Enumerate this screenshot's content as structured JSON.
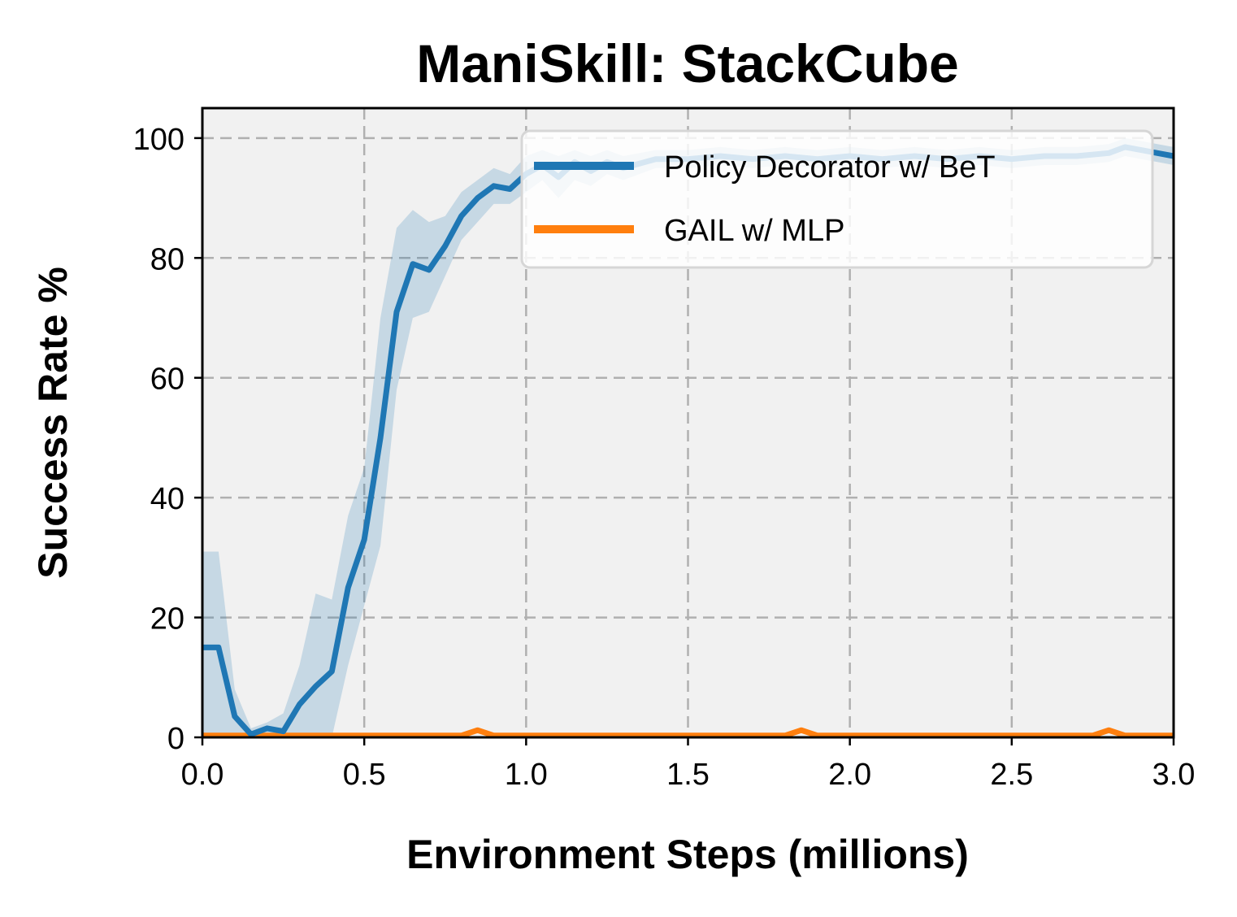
{
  "chart_data": {
    "type": "line",
    "title": "ManiSkill: StackCube",
    "xlabel": "Environment Steps (millions)",
    "ylabel": "Success Rate %",
    "xlim": [
      0.0,
      3.0
    ],
    "ylim": [
      0,
      105
    ],
    "xticks": [
      0.0,
      0.5,
      1.0,
      1.5,
      2.0,
      2.5,
      3.0
    ],
    "xtick_labels": [
      "0.0",
      "0.5",
      "1.0",
      "1.5",
      "2.0",
      "2.5",
      "3.0"
    ],
    "yticks": [
      0,
      20,
      40,
      60,
      80,
      100
    ],
    "ytick_labels": [
      "0",
      "20",
      "40",
      "60",
      "80",
      "100"
    ],
    "grid": true,
    "legend_position": "top-right",
    "series": [
      {
        "name": "Policy Decorator w/ BeT",
        "color": "#1f77b4",
        "x": [
          0.0,
          0.05,
          0.1,
          0.15,
          0.2,
          0.25,
          0.3,
          0.35,
          0.4,
          0.45,
          0.5,
          0.55,
          0.6,
          0.65,
          0.7,
          0.75,
          0.8,
          0.85,
          0.9,
          0.95,
          1.0,
          1.05,
          1.1,
          1.15,
          1.2,
          1.25,
          1.3,
          1.4,
          1.5,
          1.6,
          1.7,
          1.8,
          1.9,
          2.0,
          2.1,
          2.2,
          2.3,
          2.4,
          2.5,
          2.6,
          2.7,
          2.8,
          2.85,
          2.9,
          2.95,
          3.0
        ],
        "y": [
          15,
          15,
          3.5,
          0.5,
          1.5,
          1,
          5.5,
          8.5,
          11,
          25,
          33,
          50,
          71,
          79,
          78,
          82,
          87,
          90,
          92,
          91.5,
          94,
          95.5,
          93.5,
          96,
          94.5,
          96,
          95,
          96.5,
          96.5,
          97,
          96.5,
          97,
          96.5,
          97,
          96.5,
          97,
          96.5,
          97,
          96.5,
          97,
          97,
          97.5,
          98.5,
          98,
          97.5,
          97
        ],
        "y_upper": [
          31,
          31,
          8,
          1.5,
          2.5,
          4,
          12,
          24,
          23,
          37,
          45,
          70,
          85,
          88,
          86,
          87,
          91,
          93,
          95,
          94,
          97,
          98,
          97,
          98,
          97,
          98,
          97,
          98,
          98,
          98.5,
          98,
          98.5,
          98,
          98.5,
          98,
          98.5,
          98,
          98.5,
          98,
          98.5,
          98.5,
          99,
          100,
          99.5,
          99,
          98.5
        ],
        "y_lower": [
          0,
          0,
          0,
          0,
          0,
          0,
          0,
          0,
          0,
          12,
          22,
          32,
          58,
          70,
          71,
          77,
          83,
          86,
          89,
          89,
          91,
          93,
          90,
          93,
          92,
          94,
          93,
          95,
          95,
          95.5,
          95,
          95.5,
          95,
          95.5,
          95,
          95.5,
          95,
          95.5,
          95,
          95.5,
          95.5,
          96,
          97,
          96.5,
          96,
          95.5
        ]
      },
      {
        "name": "GAIL w/ MLP",
        "color": "#ff7f0e",
        "x": [
          0.0,
          0.8,
          0.85,
          0.9,
          1.8,
          1.85,
          1.9,
          2.75,
          2.8,
          2.85,
          3.0
        ],
        "y": [
          0.3,
          0.3,
          1.2,
          0.3,
          0.3,
          1.2,
          0.3,
          0.3,
          1.2,
          0.3,
          0.3
        ]
      }
    ]
  }
}
